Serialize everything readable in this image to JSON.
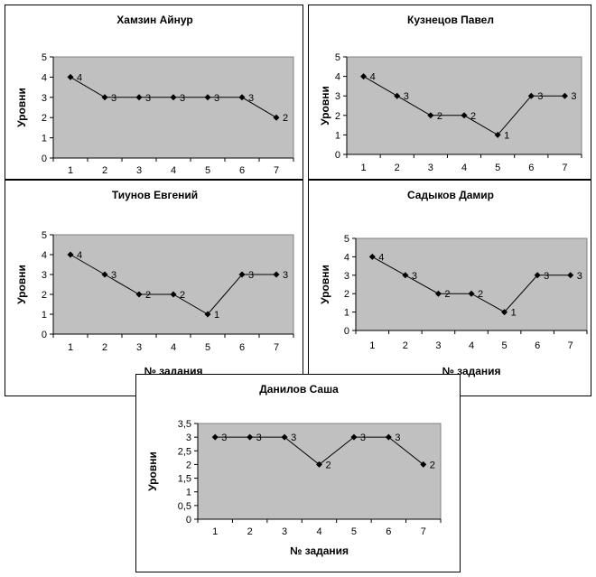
{
  "chart_data": [
    {
      "type": "line",
      "title": "Хамзин Айнур",
      "ylabel": "Уровни",
      "xlabel": "",
      "categories": [
        "1",
        "2",
        "3",
        "4",
        "5",
        "6",
        "7"
      ],
      "values": [
        4,
        3,
        3,
        3,
        3,
        3,
        2
      ],
      "yticks": [
        "0",
        "1",
        "2",
        "3",
        "4",
        "5"
      ],
      "ylim": [
        0,
        5
      ],
      "grid": false,
      "plot_bg": "#c0c0c0",
      "line_color": "#000000"
    },
    {
      "type": "line",
      "title": "Кузнецов Павел",
      "ylabel": "Уровни",
      "xlabel": "",
      "categories": [
        "1",
        "2",
        "3",
        "4",
        "5",
        "6",
        "7"
      ],
      "values": [
        4,
        3,
        2,
        2,
        1,
        3,
        3
      ],
      "yticks": [
        "0",
        "1",
        "2",
        "3",
        "4",
        "5"
      ],
      "ylim": [
        0,
        5
      ],
      "grid": false,
      "plot_bg": "#c0c0c0",
      "line_color": "#000000"
    },
    {
      "type": "line",
      "title": "Тиунов Евгений",
      "ylabel": "Уровни",
      "xlabel": "№ задания",
      "categories": [
        "1",
        "2",
        "3",
        "4",
        "5",
        "6",
        "7"
      ],
      "values": [
        4,
        3,
        2,
        2,
        1,
        3,
        3
      ],
      "yticks": [
        "0",
        "1",
        "2",
        "3",
        "4",
        "5"
      ],
      "ylim": [
        0,
        5
      ],
      "grid": false,
      "plot_bg": "#c0c0c0",
      "line_color": "#000000"
    },
    {
      "type": "line",
      "title": "Садыков Дамир",
      "ylabel": "Уровни",
      "xlabel": "№ задания",
      "categories": [
        "1",
        "2",
        "3",
        "4",
        "5",
        "6",
        "7"
      ],
      "values": [
        4,
        3,
        2,
        2,
        1,
        3,
        3
      ],
      "yticks": [
        "0",
        "1",
        "2",
        "3",
        "4",
        "5"
      ],
      "ylim": [
        0,
        5
      ],
      "grid": false,
      "plot_bg": "#c0c0c0",
      "line_color": "#000000"
    },
    {
      "type": "line",
      "title": "Данилов Саша",
      "ylabel": "Уровни",
      "xlabel": "№ задания",
      "categories": [
        "1",
        "2",
        "3",
        "4",
        "5",
        "6",
        "7"
      ],
      "values": [
        3,
        3,
        3,
        2,
        3,
        3,
        2
      ],
      "yticks": [
        "0",
        "0,5",
        "1",
        "1,5",
        "2",
        "2,5",
        "3",
        "3,5"
      ],
      "ylim": [
        0,
        3.5
      ],
      "grid": false,
      "plot_bg": "#c0c0c0",
      "line_color": "#000000"
    }
  ]
}
